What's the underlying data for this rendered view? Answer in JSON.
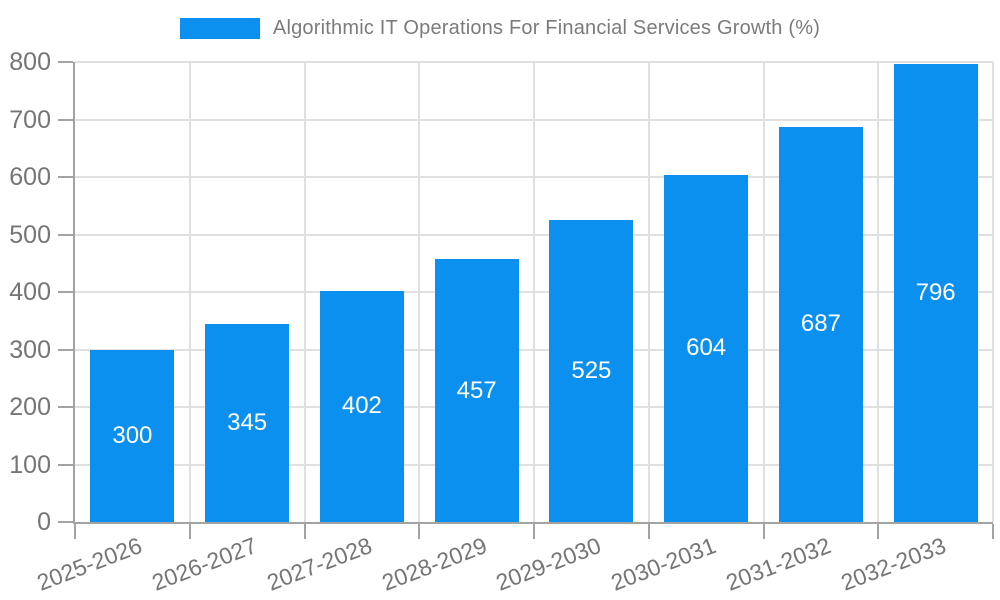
{
  "chart_data": {
    "type": "bar",
    "title": "Algorithmic IT Operations For Financial Services Growth (%)",
    "categories": [
      "2025-2026",
      "2026-2027",
      "2027-2028",
      "2028-2029",
      "2029-2030",
      "2030-2031",
      "2031-2032",
      "2032-2033"
    ],
    "values": [
      300,
      345,
      402,
      457,
      525,
      604,
      687,
      796
    ],
    "value_labels": [
      "300",
      "345",
      "402",
      "457",
      "525",
      "604",
      "687",
      "796"
    ],
    "xlabel": "",
    "ylabel": "",
    "ylim": [
      0,
      800
    ],
    "yticks": [
      0,
      100,
      200,
      300,
      400,
      500,
      600,
      700,
      800
    ],
    "grid": true,
    "legend_position": "top-center",
    "colors": {
      "bar": "#0c90f0",
      "value_label": "#ffffff",
      "grid": "#e0e0e0",
      "axis_line": "#a3a3a3",
      "tick_text": "#757575",
      "title_text": "#7b7b7b",
      "background": "#ffffff"
    }
  }
}
